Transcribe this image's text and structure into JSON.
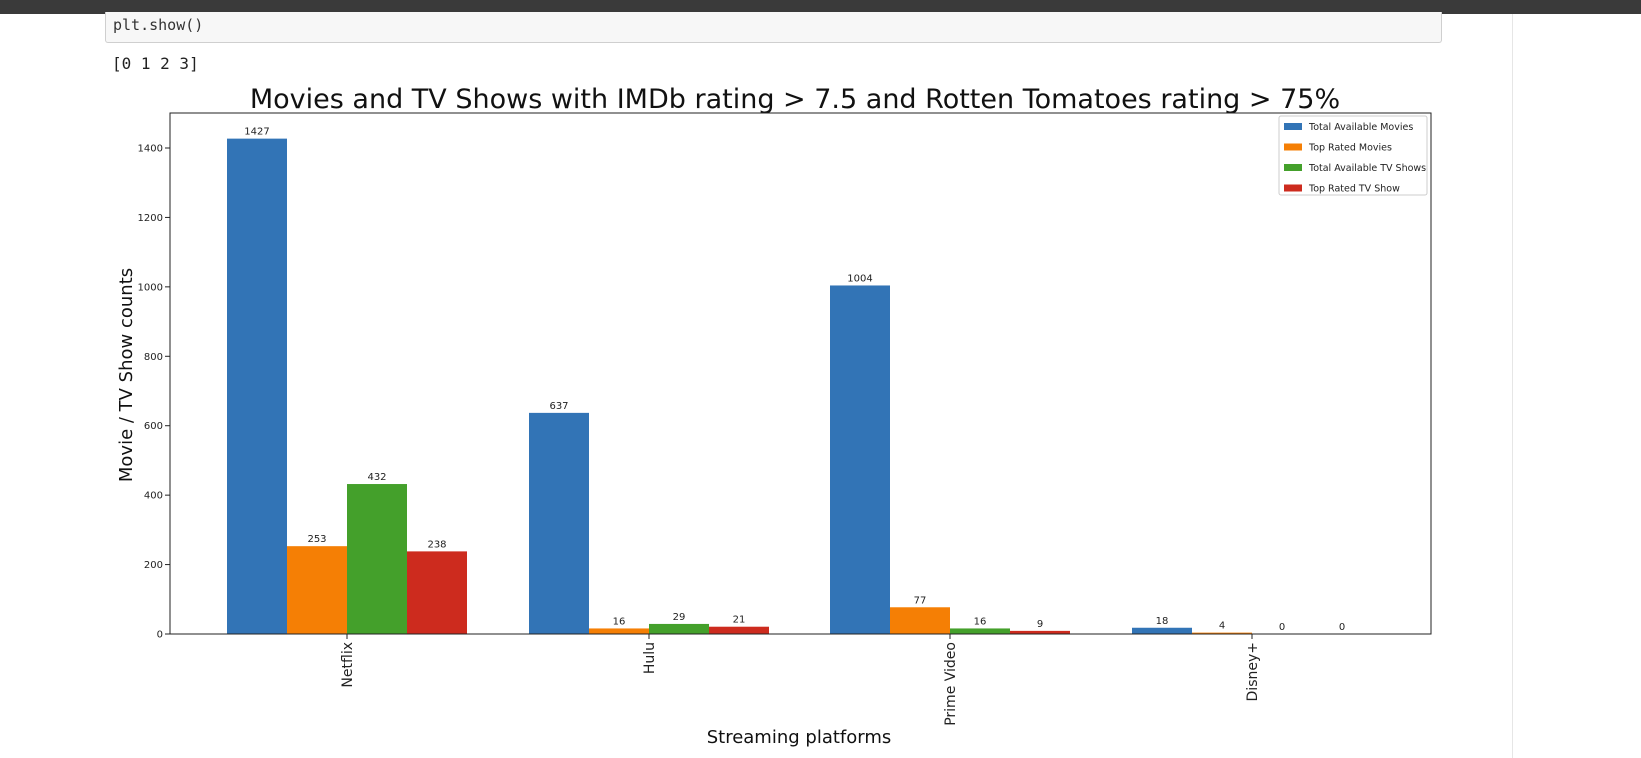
{
  "notebook": {
    "code_line": "plt.show()",
    "output_line": "[0 1 2 3]"
  },
  "chart_data": {
    "type": "bar",
    "title": "Movies and TV Shows with IMDb rating > 7.5 and Rotten Tomatoes rating > 75%",
    "xlabel": "Streaming platforms",
    "ylabel": "Movie / TV Show counts",
    "categories": [
      "Netflix",
      "Hulu",
      "Prime Video",
      "Disney+"
    ],
    "ylim": [
      0,
      1500
    ],
    "yticks": [
      0,
      200,
      400,
      600,
      800,
      1000,
      1200,
      1400
    ],
    "grid": false,
    "legend_position": "top-right",
    "series": [
      {
        "name": "Total Available Movies",
        "color": "#3274b6",
        "values": [
          1427,
          637,
          1004,
          18
        ]
      },
      {
        "name": "Top Rated Movies",
        "color": "#f57f05",
        "values": [
          253,
          16,
          77,
          4
        ]
      },
      {
        "name": "Total Available TV Shows",
        "color": "#44a02b",
        "values": [
          432,
          29,
          16,
          0
        ]
      },
      {
        "name": "Top Rated TV Show",
        "color": "#cd2b1e",
        "values": [
          238,
          21,
          9,
          0
        ]
      }
    ]
  }
}
